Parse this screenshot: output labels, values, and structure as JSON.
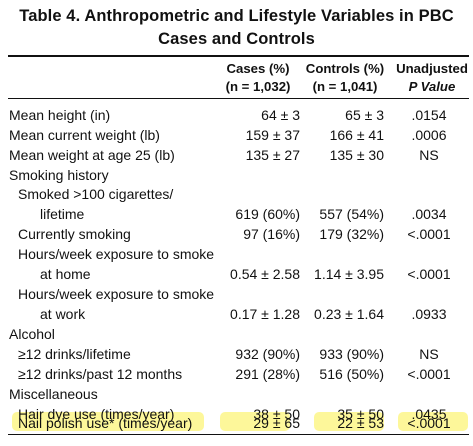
{
  "table": {
    "title_line1": "Table 4. Anthropometric and Lifestyle Variables in PBC",
    "title_line2": "Cases and Controls",
    "headers": {
      "cases_l1": "Cases (%)",
      "cases_l2": "(n = 1,032)",
      "controls_l1": "Controls (%)",
      "controls_l2": "(n = 1,041)",
      "p_l1": "Unadjusted",
      "p_l2": "P Value"
    },
    "rows": [
      {
        "label": "Mean height (in)",
        "cases": "64 ± 3",
        "controls": "65 ± 3",
        "p": ".0154"
      },
      {
        "label": "Mean current weight (lb)",
        "cases": "159 ± 37",
        "controls": "166 ± 41",
        "p": ".0006"
      },
      {
        "label": "Mean weight at age 25 (lb)",
        "cases": "135 ± 27",
        "controls": "135 ± 30",
        "p": "NS"
      },
      {
        "label": "Smoking history",
        "cases": "",
        "controls": "",
        "p": ""
      },
      {
        "label": "Smoked >100 cigarettes/",
        "cases": "",
        "controls": "",
        "p": ""
      },
      {
        "label": "lifetime",
        "cases": "619 (60%)",
        "controls": "557 (54%)",
        "p": ".0034"
      },
      {
        "label": "Currently smoking",
        "cases": "97 (16%)",
        "controls": "179 (32%)",
        "p": "<.0001"
      },
      {
        "label": "Hours/week exposure to smoke",
        "cases": "",
        "controls": "",
        "p": ""
      },
      {
        "label": "at home",
        "cases": "0.54 ± 2.58",
        "controls": "1.14 ± 3.95",
        "p": "<.0001"
      },
      {
        "label": "Hours/week exposure to smoke",
        "cases": "",
        "controls": "",
        "p": ""
      },
      {
        "label": "at work",
        "cases": "0.17 ± 1.28",
        "controls": "0.23 ± 1.64",
        "p": ".0933"
      },
      {
        "label": "Alcohol",
        "cases": "",
        "controls": "",
        "p": ""
      },
      {
        "label": "≥12 drinks/lifetime",
        "cases": "932 (90%)",
        "controls": "933 (90%)",
        "p": "NS"
      },
      {
        "label": "≥12 drinks/past 12 months",
        "cases": "291 (28%)",
        "controls": "516 (50%)",
        "p": "<.0001"
      },
      {
        "label": "Miscellaneous",
        "cases": "",
        "controls": "",
        "p": ""
      },
      {
        "label": "Hair dye use (times/year)",
        "cases": "38 ± 50",
        "controls": "35 ± 50",
        "p": ".0435"
      },
      {
        "label": "Nail polish use* (times/year)",
        "cases": "29 ± 65",
        "controls": "22 ± 53",
        "p": "<.0001"
      }
    ],
    "highlight_color": "#fdf79a"
  }
}
